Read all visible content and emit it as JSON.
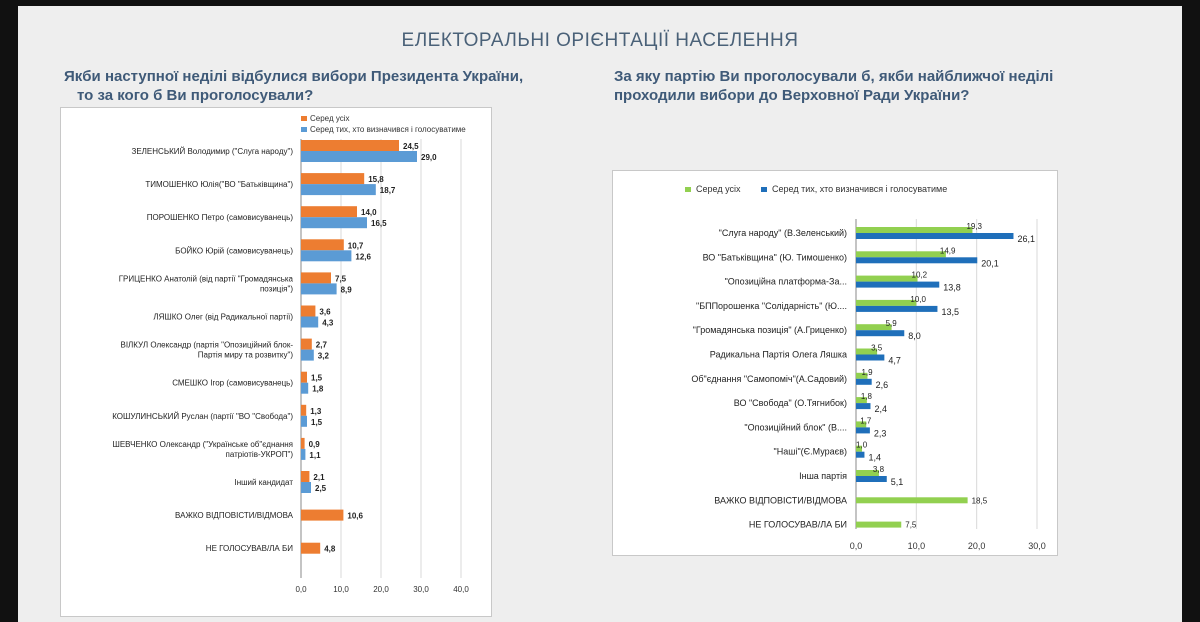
{
  "page_title": "ЕЛЕКТОРАЛЬНІ ОРІЄНТАЦІЇ НАСЕЛЕННЯ",
  "left_question_line1": "Якби наступної неділі відбулися вибори Президента України,",
  "left_question_line2": "то за кого б Ви проголосували?",
  "right_question_line1": "За яку партію Ви проголосували б, якби найближчої неділі",
  "right_question_line2": "проходили вибори до Верховної Ради України?",
  "colors": {
    "left_all": "#ed7d31",
    "left_decided": "#5b9bd5",
    "right_all": "#92d050",
    "right_decided": "#1f6fba"
  },
  "chart_data": [
    {
      "type": "bar",
      "orientation": "horizontal",
      "categories": [
        "ЗЕЛЕНСЬКИЙ Володимир (\"Слуга народу\")",
        "ТИМОШЕНКО Юлія(\"ВО \"Батьківщина\")",
        "ПОРОШЕНКО Петро (самовисуванець)",
        "БОЙКО Юрій (самовисуванець)",
        "ГРИЦЕНКО Анатолій (від партії \"Громадянська позиція\")",
        "ЛЯШКО Олег (від Радикальної партії)",
        "ВІЛКУЛ Олександр (партія \"Опозиційний блок-Партія миру та розвитку\")",
        "СМЕШКО Ігор (самовисуванець)",
        "КОШУЛИНСЬКИЙ Руслан (партії \"ВО \"Свобода\")",
        "ШЕВЧЕНКО Олександр (\"Українське об\"єднання патріотів-УКРОП\")",
        "Інший кандидат",
        "ВАЖКО ВІДПОВІСТИ/ВІДМОВА",
        "НЕ ГОЛОСУВАВ/ЛА БИ"
      ],
      "category_lines": [
        [
          "ЗЕЛЕНСЬКИЙ Володимир (\"Слуга народу\")"
        ],
        [
          "ТИМОШЕНКО Юлія(\"ВО \"Батьківщина\")"
        ],
        [
          "ПОРОШЕНКО Петро (самовисуванець)"
        ],
        [
          "БОЙКО Юрій (самовисуванець)"
        ],
        [
          "ГРИЦЕНКО Анатолій (від партії \"Громадянська",
          "позиція\")"
        ],
        [
          "ЛЯШКО Олег (від Радикальної партії)"
        ],
        [
          "ВІЛКУЛ Олександр (партія \"Опозиційний блок-",
          "Партія миру та розвитку\")"
        ],
        [
          "СМЕШКО Ігор (самовисуванець)"
        ],
        [
          "КОШУЛИНСЬКИЙ Руслан (партії \"ВО \"Свобода\")"
        ],
        [
          "ШЕВЧЕНКО Олександр (\"Українське об\"єднання",
          "патріотів-УКРОП\")"
        ],
        [
          "Інший кандидат"
        ],
        [
          "ВАЖКО ВІДПОВІСТИ/ВІДМОВА"
        ],
        [
          "НЕ ГОЛОСУВАВ/ЛА БИ"
        ]
      ],
      "series": [
        {
          "name": "Серед усіх",
          "values": [
            24.5,
            15.8,
            14.0,
            10.7,
            7.5,
            3.6,
            2.7,
            1.5,
            1.3,
            0.9,
            2.1,
            10.6,
            4.8
          ],
          "labels": [
            "24,5",
            "15,8",
            "14,0",
            "10,7",
            "7,5",
            "3,6",
            "2,7",
            "1,5",
            "1,3",
            "0,9",
            "2,1",
            "10,6",
            "4,8"
          ]
        },
        {
          "name": "Серед тих, хто визначився і голосуватиме",
          "values": [
            29.0,
            18.7,
            16.5,
            12.6,
            8.9,
            4.3,
            3.2,
            1.8,
            1.5,
            1.1,
            2.5,
            null,
            null
          ],
          "labels": [
            "29,0",
            "18,7",
            "16,5",
            "12,6",
            "8,9",
            "4,3",
            "3,2",
            "1,8",
            "1,5",
            "1,1",
            "2,5",
            null,
            null
          ]
        }
      ],
      "xlim": [
        0,
        40
      ],
      "ticks": [
        "0,0",
        "10,0",
        "20,0",
        "30,0",
        "40,0"
      ],
      "legend": "top-right"
    },
    {
      "type": "bar",
      "orientation": "horizontal",
      "categories": [
        "\"Слуга народу\" (В.Зеленський)",
        "ВО \"Батьківщина\" (Ю. Тимошенко)",
        "\"Опозиційна платформа-За...",
        "\"БППорошенка \"Солідарність\" (Ю....",
        "\"Громадянська позиція\" (А.Гриценко)",
        "Радикальна Партія Олега Ляшка",
        "Об\"єднання \"Самопоміч\"(А.Садовий)",
        "ВО \"Свобода\" (О.Тягнибок)",
        "\"Опозиційний блок\" (В....",
        "\"Наші\"(Є.Мураєв)",
        "Інша партія",
        "ВАЖКО ВІДПОВІСТИ/ВІДМОВА",
        "НЕ ГОЛОСУВАВ/ЛА БИ"
      ],
      "series": [
        {
          "name": "Серед усіх",
          "values": [
            19.3,
            14.9,
            10.2,
            10.0,
            5.9,
            3.5,
            1.9,
            1.8,
            1.7,
            1.0,
            3.8,
            18.5,
            7.5
          ],
          "labels": [
            "19,3",
            "14,9",
            "10,2",
            "10,0",
            "5,9",
            "3,5",
            "1,9",
            "1,8",
            "1,7",
            "1,0",
            "3,8",
            "18,5",
            "7,5"
          ]
        },
        {
          "name": "Серед тих, хто визначився і голосуватиме",
          "values": [
            26.1,
            20.1,
            13.8,
            13.5,
            8.0,
            4.7,
            2.6,
            2.4,
            2.3,
            1.4,
            5.1,
            null,
            null
          ],
          "labels": [
            "26,1",
            "20,1",
            "13,8",
            "13,5",
            "8,0",
            "4,7",
            "2,6",
            "2,4",
            "2,3",
            "1,4",
            "5,1",
            null,
            null
          ]
        }
      ],
      "xlim": [
        0,
        30
      ],
      "ticks": [
        "0,0",
        "10,0",
        "20,0",
        "30,0"
      ],
      "legend": "top"
    }
  ]
}
